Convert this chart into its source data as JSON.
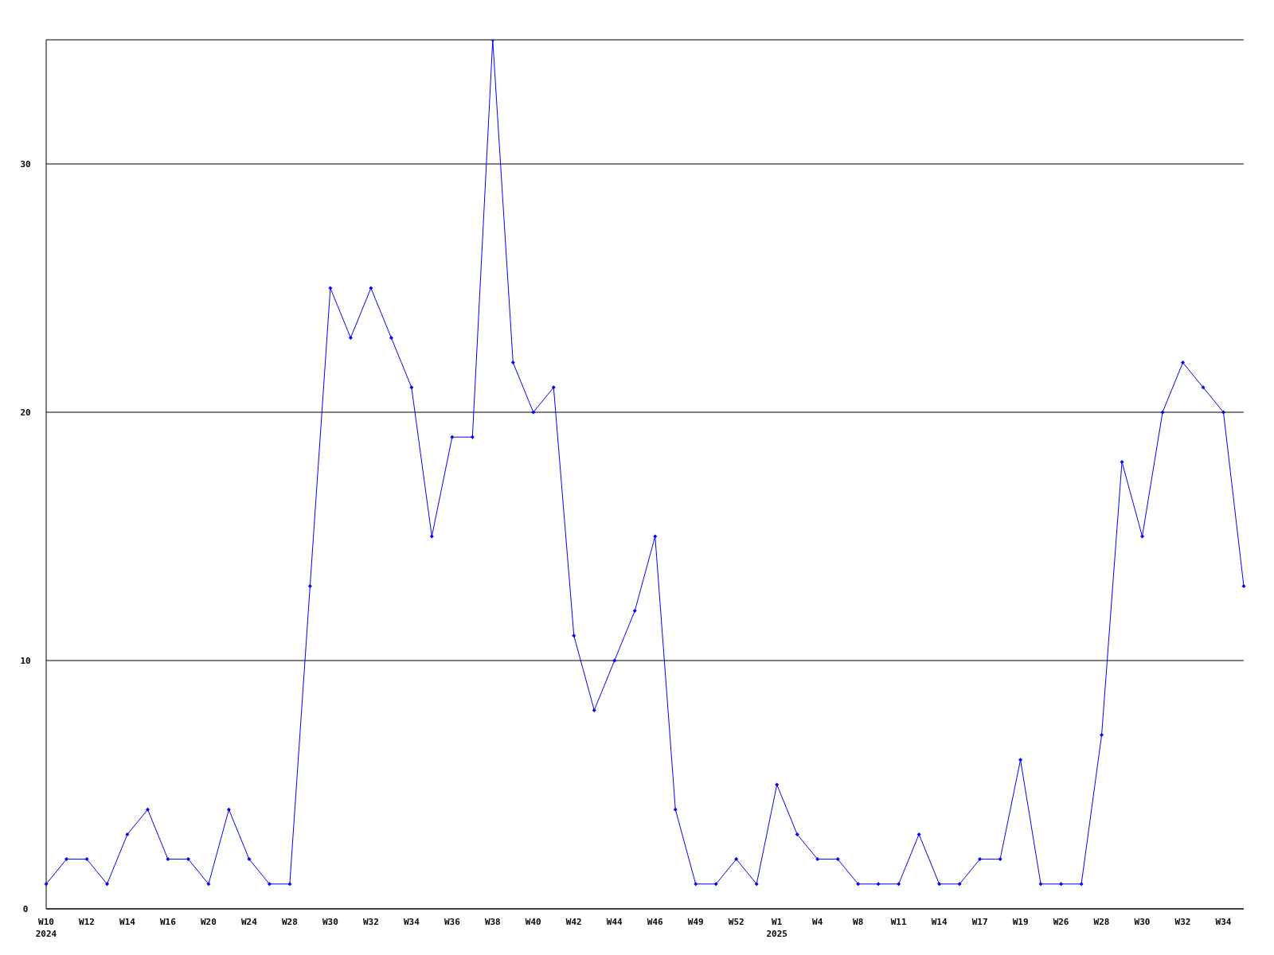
{
  "chart_data": {
    "type": "line",
    "categories": [
      "W10\n2024",
      null,
      "W12",
      null,
      "W14",
      null,
      "W16",
      null,
      "W20",
      null,
      "W24",
      null,
      "W28",
      null,
      "W30",
      null,
      "W32",
      null,
      "W34",
      null,
      "W36",
      null,
      "W38",
      null,
      "W40",
      null,
      "W42",
      null,
      "W44",
      null,
      "W46",
      null,
      "W49",
      null,
      "W52",
      null,
      "W1\n2025",
      null,
      "W4",
      null,
      "W8",
      null,
      "W11",
      null,
      "W14",
      null,
      "W17",
      null,
      "W19",
      null,
      "W26",
      null,
      "W28",
      null,
      "W30",
      null,
      "W32",
      null,
      "W34",
      null
    ],
    "series": [
      {
        "color": "#0000ff",
        "values": [
          1,
          2,
          2,
          1,
          3,
          4,
          2,
          2,
          1,
          4,
          2,
          1,
          1,
          13,
          25,
          23,
          25,
          23,
          21,
          15,
          19,
          19,
          35,
          22,
          20,
          21,
          11,
          8,
          10,
          12,
          15,
          4,
          1,
          1,
          2,
          1,
          5,
          3,
          2,
          2,
          1,
          1,
          1,
          3,
          1,
          1,
          2,
          2,
          6,
          1,
          1,
          1,
          7,
          18,
          15,
          20,
          22,
          21,
          20,
          13
        ]
      }
    ],
    "ylim": [
      0,
      35
    ],
    "yticks": [
      0,
      10,
      20,
      30
    ],
    "grid": "y",
    "marker": "diamond",
    "line_style": "solid"
  }
}
